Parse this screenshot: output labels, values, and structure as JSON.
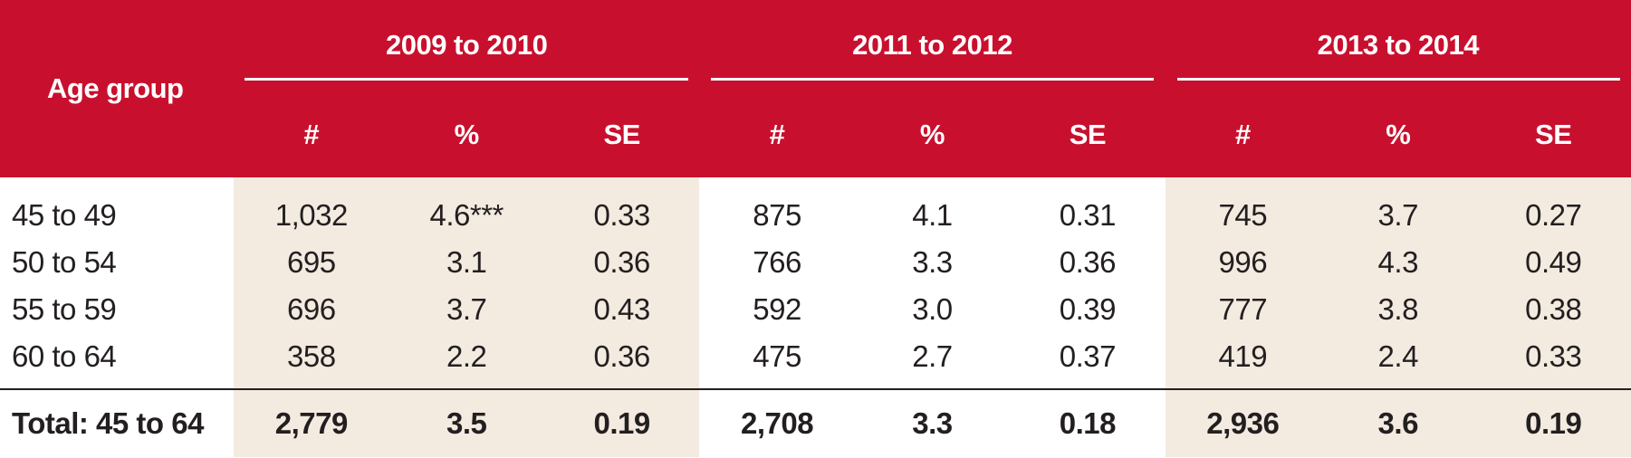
{
  "table": {
    "row_header": "Age group",
    "periods": [
      "2009 to 2010",
      "2011 to 2012",
      "2013 to 2014"
    ],
    "subcolumns": [
      "#",
      "%",
      "SE"
    ],
    "rows": [
      {
        "label": "45 to 49",
        "values": [
          "1,032",
          "4.6***",
          "0.33",
          "875",
          "4.1",
          "0.31",
          "745",
          "3.7",
          "0.27"
        ]
      },
      {
        "label": "50 to 54",
        "values": [
          "695",
          "3.1",
          "0.36",
          "766",
          "3.3",
          "0.36",
          "996",
          "4.3",
          "0.49"
        ]
      },
      {
        "label": "55 to 59",
        "values": [
          "696",
          "3.7",
          "0.43",
          "592",
          "3.0",
          "0.39",
          "777",
          "3.8",
          "0.38"
        ]
      },
      {
        "label": "60 to 64",
        "values": [
          "358",
          "2.2",
          "0.36",
          "475",
          "2.7",
          "0.37",
          "419",
          "2.4",
          "0.33"
        ]
      }
    ],
    "total": {
      "label": "Total: 45 to 64",
      "values": [
        "2,779",
        "3.5",
        "0.19",
        "2,708",
        "3.3",
        "0.18",
        "2,936",
        "3.6",
        "0.19"
      ]
    }
  },
  "colors": {
    "header_background": "#c8102e",
    "shaded_background": "#f3ebe0",
    "text": "#231f20"
  }
}
